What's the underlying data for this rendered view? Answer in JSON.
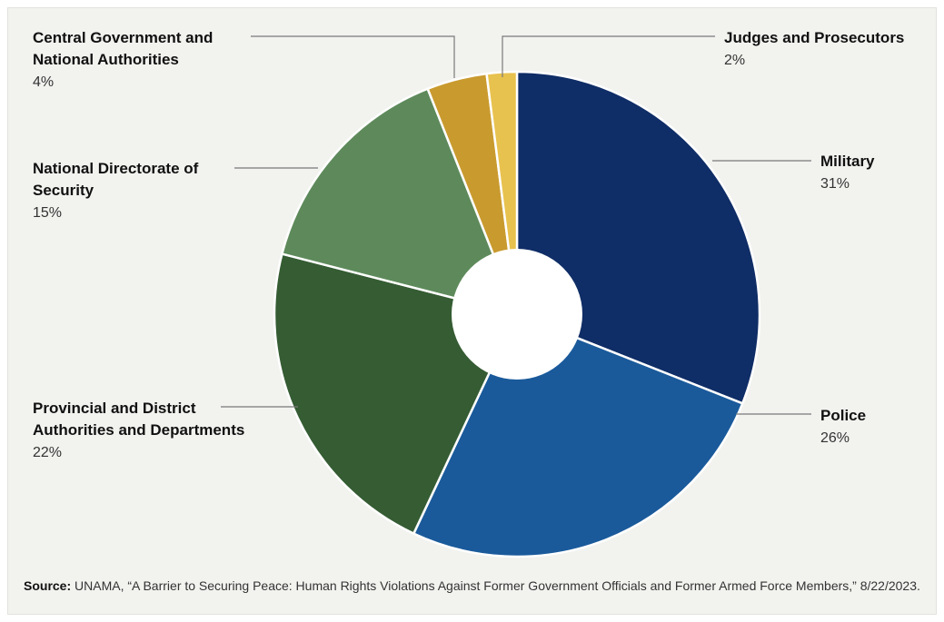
{
  "chart_data": {
    "type": "pie",
    "style": "donut",
    "slices": [
      {
        "label_lines": [
          "Military"
        ],
        "value": 31,
        "value_label": "31%",
        "color": "#0f2d66"
      },
      {
        "label_lines": [
          "Police"
        ],
        "value": 26,
        "value_label": "26%",
        "color": "#1a5a9b"
      },
      {
        "label_lines": [
          "Provincial and District",
          "Authorities and Departments"
        ],
        "value": 22,
        "value_label": "22%",
        "color": "#355c33"
      },
      {
        "label_lines": [
          "National Directorate of",
          "Security"
        ],
        "value": 15,
        "value_label": "15%",
        "color": "#5e8a5b"
      },
      {
        "label_lines": [
          "Central Government and",
          "National Authorities"
        ],
        "value": 4,
        "value_label": "4%",
        "color": "#c99a2e"
      },
      {
        "label_lines": [
          "Judges and Prosecutors"
        ],
        "value": 2,
        "value_label": "2%",
        "color": "#e8c24f"
      }
    ]
  },
  "source": {
    "prefix": "Source:",
    "text": " UNAMA, “A Barrier to Securing Peace: Human Rights Violations Against Former Government Officials and Former Armed Force Members,” 8/22/2023."
  }
}
